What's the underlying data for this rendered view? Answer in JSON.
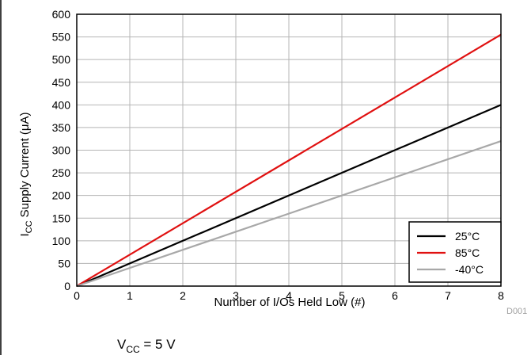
{
  "chart_data": {
    "type": "line",
    "x": [
      0,
      1,
      2,
      3,
      4,
      5,
      6,
      7,
      8
    ],
    "xticks": [
      "0",
      "1",
      "2",
      "3",
      "4",
      "5",
      "6",
      "7",
      "8"
    ],
    "yticks": [
      "0",
      "50",
      "100",
      "150",
      "200",
      "250",
      "300",
      "350",
      "400",
      "450",
      "500",
      "550",
      "600"
    ],
    "xlim": [
      0,
      8
    ],
    "ylim": [
      0,
      600
    ],
    "xlabel": "Number of I/Os Held Low (#)",
    "ylabel": {
      "main": "I",
      "sub": "CC",
      "rest": " Supply Current (",
      "unit": "μA",
      "close": ")"
    },
    "grid": true,
    "legend_position": "bottom-right",
    "series": [
      {
        "name": "25°C",
        "color": "#000000",
        "x": [
          0,
          8
        ],
        "values": [
          0,
          400
        ]
      },
      {
        "name": "85°C",
        "color": "#e01010",
        "x": [
          0,
          8
        ],
        "values": [
          0,
          555
        ]
      },
      {
        "name": "-40°C",
        "color": "#a8a8a8",
        "x": [
          0,
          8
        ],
        "values": [
          0,
          320
        ]
      }
    ],
    "annotation": "D001",
    "footnote": {
      "main": "V",
      "sub": "CC",
      "rest": " = 5 V"
    }
  }
}
